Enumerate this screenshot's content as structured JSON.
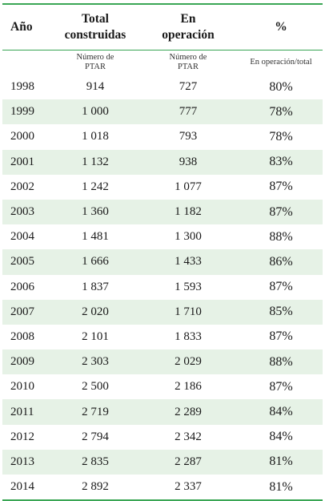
{
  "header": {
    "year": "Año",
    "total_line1": "Total",
    "total_line2": "construidas",
    "operating_line1": "En",
    "operating_line2": "operación",
    "percent": "%"
  },
  "subheader": {
    "total_line1": "Número de",
    "total_line2": "PTAR",
    "operating_line1": "Número de",
    "operating_line2": "PTAR",
    "percent": "En operación/total"
  },
  "rows": [
    {
      "year": "1998",
      "total": "914",
      "operating": "727",
      "percent": "80%"
    },
    {
      "year": "1999",
      "total": "1 000",
      "operating": "777",
      "percent": "78%"
    },
    {
      "year": "2000",
      "total": "1 018",
      "operating": "793",
      "percent": "78%"
    },
    {
      "year": "2001",
      "total": "1 132",
      "operating": "938",
      "percent": "83%"
    },
    {
      "year": "2002",
      "total": "1 242",
      "operating": "1 077",
      "percent": "87%"
    },
    {
      "year": "2003",
      "total": "1 360",
      "operating": "1 182",
      "percent": "87%"
    },
    {
      "year": "2004",
      "total": "1 481",
      "operating": "1 300",
      "percent": "88%"
    },
    {
      "year": "2005",
      "total": "1 666",
      "operating": "1 433",
      "percent": "86%"
    },
    {
      "year": "2006",
      "total": "1 837",
      "operating": "1 593",
      "percent": "87%"
    },
    {
      "year": "2007",
      "total": "2 020",
      "operating": "1 710",
      "percent": "85%"
    },
    {
      "year": "2008",
      "total": "2 101",
      "operating": "1 833",
      "percent": "87%"
    },
    {
      "year": "2009",
      "total": "2 303",
      "operating": "2 029",
      "percent": "88%"
    },
    {
      "year": "2010",
      "total": "2 500",
      "operating": "2 186",
      "percent": "87%"
    },
    {
      "year": "2011",
      "total": "2 719",
      "operating": "2 289",
      "percent": "84%"
    },
    {
      "year": "2012",
      "total": "2 794",
      "operating": "2 342",
      "percent": "84%"
    },
    {
      "year": "2013",
      "total": "2 835",
      "operating": "2 287",
      "percent": "81%"
    },
    {
      "year": "2014",
      "total": "2 892",
      "operating": "2 337",
      "percent": "81%"
    }
  ],
  "colors": {
    "rule": "#3aa655",
    "shade": "#e6f2e6"
  }
}
